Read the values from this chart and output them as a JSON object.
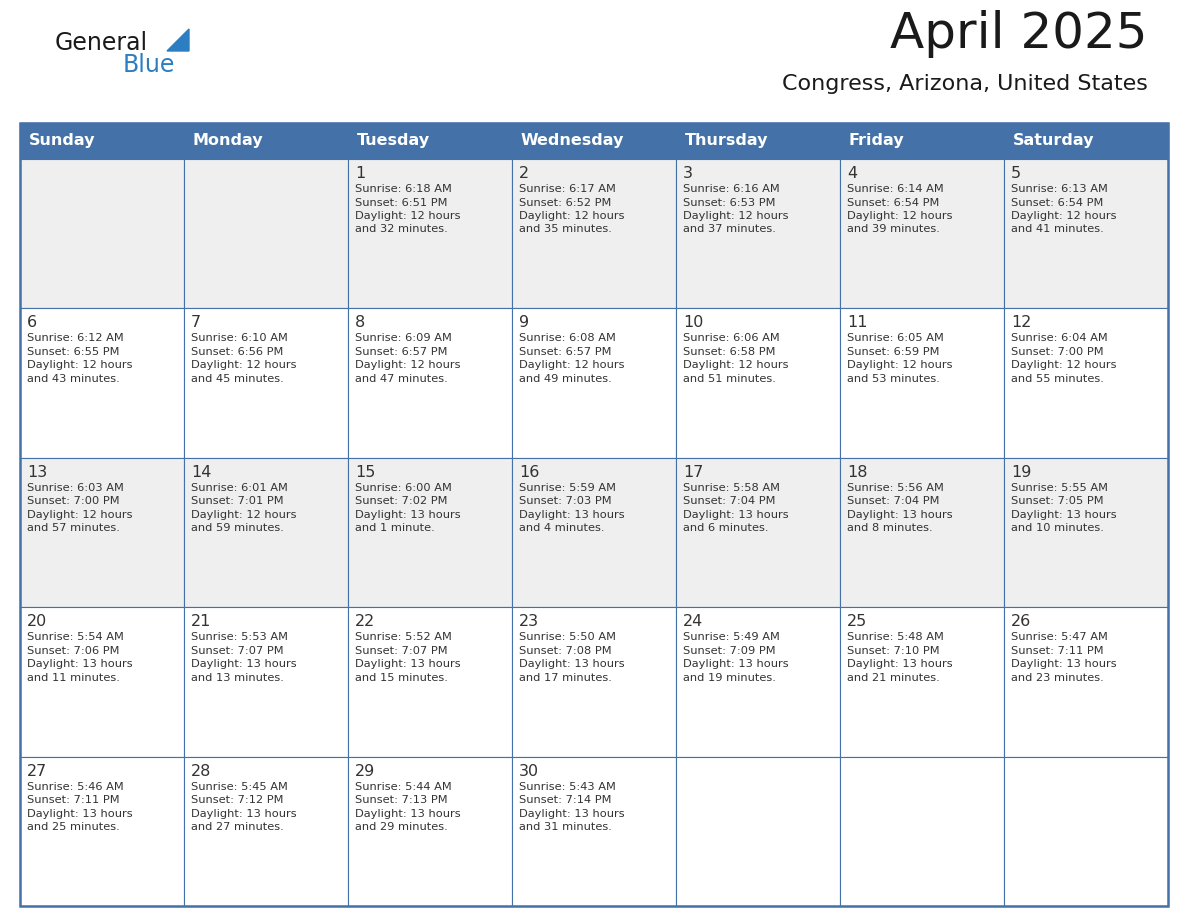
{
  "title": "April 2025",
  "subtitle": "Congress, Arizona, United States",
  "days_of_week": [
    "Sunday",
    "Monday",
    "Tuesday",
    "Wednesday",
    "Thursday",
    "Friday",
    "Saturday"
  ],
  "header_bg": "#4472A8",
  "header_text": "#FFFFFF",
  "row_bg_light": "#EFEFEF",
  "row_bg_white": "#FFFFFF",
  "border_color": "#4472A8",
  "text_color": "#333333",
  "logo_general_color": "#1a1a1a",
  "logo_blue_color": "#2B7EC1",
  "title_color": "#1a1a1a",
  "subtitle_color": "#1a1a1a",
  "calendar_data": [
    [
      {
        "day": "",
        "info": ""
      },
      {
        "day": "",
        "info": ""
      },
      {
        "day": "1",
        "info": "Sunrise: 6:18 AM\nSunset: 6:51 PM\nDaylight: 12 hours\nand 32 minutes."
      },
      {
        "day": "2",
        "info": "Sunrise: 6:17 AM\nSunset: 6:52 PM\nDaylight: 12 hours\nand 35 minutes."
      },
      {
        "day": "3",
        "info": "Sunrise: 6:16 AM\nSunset: 6:53 PM\nDaylight: 12 hours\nand 37 minutes."
      },
      {
        "day": "4",
        "info": "Sunrise: 6:14 AM\nSunset: 6:54 PM\nDaylight: 12 hours\nand 39 minutes."
      },
      {
        "day": "5",
        "info": "Sunrise: 6:13 AM\nSunset: 6:54 PM\nDaylight: 12 hours\nand 41 minutes."
      }
    ],
    [
      {
        "day": "6",
        "info": "Sunrise: 6:12 AM\nSunset: 6:55 PM\nDaylight: 12 hours\nand 43 minutes."
      },
      {
        "day": "7",
        "info": "Sunrise: 6:10 AM\nSunset: 6:56 PM\nDaylight: 12 hours\nand 45 minutes."
      },
      {
        "day": "8",
        "info": "Sunrise: 6:09 AM\nSunset: 6:57 PM\nDaylight: 12 hours\nand 47 minutes."
      },
      {
        "day": "9",
        "info": "Sunrise: 6:08 AM\nSunset: 6:57 PM\nDaylight: 12 hours\nand 49 minutes."
      },
      {
        "day": "10",
        "info": "Sunrise: 6:06 AM\nSunset: 6:58 PM\nDaylight: 12 hours\nand 51 minutes."
      },
      {
        "day": "11",
        "info": "Sunrise: 6:05 AM\nSunset: 6:59 PM\nDaylight: 12 hours\nand 53 minutes."
      },
      {
        "day": "12",
        "info": "Sunrise: 6:04 AM\nSunset: 7:00 PM\nDaylight: 12 hours\nand 55 minutes."
      }
    ],
    [
      {
        "day": "13",
        "info": "Sunrise: 6:03 AM\nSunset: 7:00 PM\nDaylight: 12 hours\nand 57 minutes."
      },
      {
        "day": "14",
        "info": "Sunrise: 6:01 AM\nSunset: 7:01 PM\nDaylight: 12 hours\nand 59 minutes."
      },
      {
        "day": "15",
        "info": "Sunrise: 6:00 AM\nSunset: 7:02 PM\nDaylight: 13 hours\nand 1 minute."
      },
      {
        "day": "16",
        "info": "Sunrise: 5:59 AM\nSunset: 7:03 PM\nDaylight: 13 hours\nand 4 minutes."
      },
      {
        "day": "17",
        "info": "Sunrise: 5:58 AM\nSunset: 7:04 PM\nDaylight: 13 hours\nand 6 minutes."
      },
      {
        "day": "18",
        "info": "Sunrise: 5:56 AM\nSunset: 7:04 PM\nDaylight: 13 hours\nand 8 minutes."
      },
      {
        "day": "19",
        "info": "Sunrise: 5:55 AM\nSunset: 7:05 PM\nDaylight: 13 hours\nand 10 minutes."
      }
    ],
    [
      {
        "day": "20",
        "info": "Sunrise: 5:54 AM\nSunset: 7:06 PM\nDaylight: 13 hours\nand 11 minutes."
      },
      {
        "day": "21",
        "info": "Sunrise: 5:53 AM\nSunset: 7:07 PM\nDaylight: 13 hours\nand 13 minutes."
      },
      {
        "day": "22",
        "info": "Sunrise: 5:52 AM\nSunset: 7:07 PM\nDaylight: 13 hours\nand 15 minutes."
      },
      {
        "day": "23",
        "info": "Sunrise: 5:50 AM\nSunset: 7:08 PM\nDaylight: 13 hours\nand 17 minutes."
      },
      {
        "day": "24",
        "info": "Sunrise: 5:49 AM\nSunset: 7:09 PM\nDaylight: 13 hours\nand 19 minutes."
      },
      {
        "day": "25",
        "info": "Sunrise: 5:48 AM\nSunset: 7:10 PM\nDaylight: 13 hours\nand 21 minutes."
      },
      {
        "day": "26",
        "info": "Sunrise: 5:47 AM\nSunset: 7:11 PM\nDaylight: 13 hours\nand 23 minutes."
      }
    ],
    [
      {
        "day": "27",
        "info": "Sunrise: 5:46 AM\nSunset: 7:11 PM\nDaylight: 13 hours\nand 25 minutes."
      },
      {
        "day": "28",
        "info": "Sunrise: 5:45 AM\nSunset: 7:12 PM\nDaylight: 13 hours\nand 27 minutes."
      },
      {
        "day": "29",
        "info": "Sunrise: 5:44 AM\nSunset: 7:13 PM\nDaylight: 13 hours\nand 29 minutes."
      },
      {
        "day": "30",
        "info": "Sunrise: 5:43 AM\nSunset: 7:14 PM\nDaylight: 13 hours\nand 31 minutes."
      },
      {
        "day": "",
        "info": ""
      },
      {
        "day": "",
        "info": ""
      },
      {
        "day": "",
        "info": ""
      }
    ]
  ],
  "row_backgrounds": [
    "#EFEFEF",
    "#FFFFFF",
    "#EFEFEF",
    "#FFFFFF",
    "#FFFFFF"
  ]
}
